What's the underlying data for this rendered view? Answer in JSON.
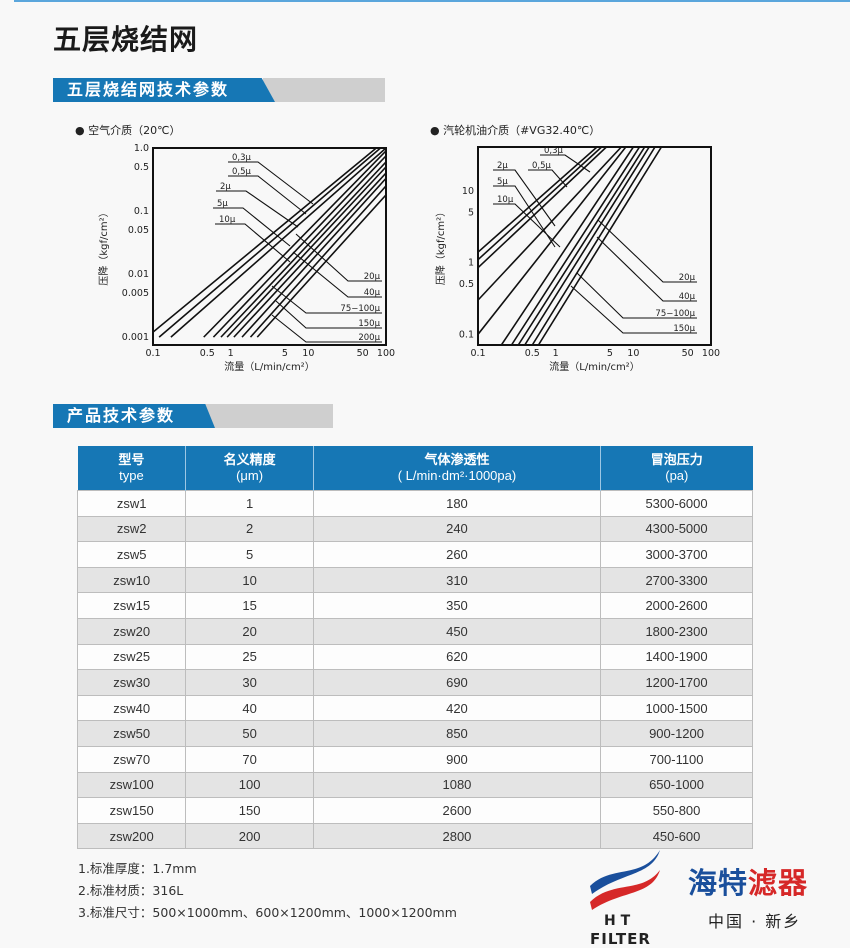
{
  "page_title": "五层烧结网",
  "section1_title": "五层烧结网技术参数",
  "section2_title": "产品技术参数",
  "chart_data": [
    {
      "type": "line",
      "title": "● 空气介质（20℃）",
      "xlabel": "流量（L/min/cm²）",
      "ylabel": "压降（kgf/cm²）",
      "xscale": "log",
      "yscale": "log",
      "xlim": [
        0.1,
        100
      ],
      "ylim": [
        0.00075,
        1.0
      ],
      "xticks": [
        "0.1",
        "0.5",
        "1",
        "5",
        "10",
        "50",
        "100"
      ],
      "xtick_values": [
        0.1,
        0.5,
        1,
        5,
        10,
        50,
        100
      ],
      "yticks": [
        "1.0",
        "0.5",
        "0.1",
        "0.05",
        "0.01",
        "0.005",
        "0.001"
      ],
      "ytick_values": [
        1.0,
        0.5,
        0.1,
        0.05,
        0.01,
        0.005,
        0.001
      ],
      "left_labels": [
        "0,3μ",
        "0,5μ",
        "2μ",
        "5μ",
        "10μ"
      ],
      "right_labels": [
        "20μ",
        "40μ",
        "75−100μ",
        "150μ",
        "200μ"
      ],
      "lines": [
        [
          [
            0.1,
            0.0012
          ],
          [
            75,
            1
          ]
        ],
        [
          [
            0.12,
            0.001
          ],
          [
            85,
            1
          ]
        ],
        [
          [
            0.17,
            0.001
          ],
          [
            100,
            1
          ]
        ],
        [
          [
            0.45,
            0.001
          ],
          [
            100,
            0.9
          ]
        ],
        [
          [
            0.6,
            0.001
          ],
          [
            100,
            0.75
          ]
        ],
        [
          [
            0.75,
            0.001
          ],
          [
            100,
            0.6
          ]
        ],
        [
          [
            0.9,
            0.001
          ],
          [
            100,
            0.5
          ]
        ],
        [
          [
            1.1,
            0.001
          ],
          [
            100,
            0.4
          ]
        ],
        [
          [
            1.4,
            0.001
          ],
          [
            100,
            0.33
          ]
        ],
        [
          [
            1.8,
            0.001
          ],
          [
            100,
            0.25
          ]
        ],
        [
          [
            2.2,
            0.001
          ],
          [
            100,
            0.18
          ]
        ]
      ]
    },
    {
      "type": "line",
      "title": "● 汽轮机油介质（#VG32.40℃）",
      "xlabel": "流量（L/min/cm²）",
      "ylabel": "压降（kgf/cm²）",
      "xscale": "log",
      "yscale": "log",
      "xlim": [
        0.1,
        100
      ],
      "ylim": [
        0.071,
        41
      ],
      "xticks": [
        "0.1",
        "0.5",
        "1",
        "5",
        "10",
        "50",
        "100"
      ],
      "xtick_values": [
        0.1,
        0.5,
        1,
        5,
        10,
        50,
        100
      ],
      "yticks": [
        "10",
        "5",
        "1",
        "0.5",
        "0.1"
      ],
      "ytick_values": [
        10,
        5,
        1,
        0.5,
        0.1
      ],
      "left_labels": [
        "0,3μ",
        "0,5μ",
        "2μ",
        "5μ",
        "10μ"
      ],
      "right_labels": [
        "20μ",
        "40μ",
        "75−100μ",
        "150μ"
      ],
      "lines": [
        [
          [
            0.1,
            1.4
          ],
          [
            3.4,
            41
          ]
        ],
        [
          [
            0.1,
            1.1
          ],
          [
            3.9,
            41
          ]
        ],
        [
          [
            0.1,
            0.85
          ],
          [
            4.5,
            41
          ]
        ],
        [
          [
            0.1,
            0.3
          ],
          [
            7,
            41
          ]
        ],
        [
          [
            0.1,
            0.1
          ],
          [
            8,
            41
          ]
        ],
        [
          [
            0.2,
            0.071
          ],
          [
            10,
            41
          ]
        ],
        [
          [
            0.27,
            0.071
          ],
          [
            12,
            41
          ]
        ],
        [
          [
            0.33,
            0.071
          ],
          [
            14,
            41
          ]
        ],
        [
          [
            0.4,
            0.071
          ],
          [
            16,
            41
          ]
        ],
        [
          [
            0.5,
            0.071
          ],
          [
            19,
            41
          ]
        ],
        [
          [
            0.6,
            0.071
          ],
          [
            23,
            41
          ]
        ]
      ]
    }
  ],
  "table": {
    "headers": [
      {
        "line1": "型号",
        "line2": "type"
      },
      {
        "line1": "名义精度",
        "line2": "(μm)"
      },
      {
        "line1": "气体渗透性",
        "line2": "( L/min·dm²·1000pa)"
      },
      {
        "line1": "冒泡压力",
        "line2": "(pa)"
      }
    ],
    "rows": [
      [
        "zsw1",
        "1",
        "180",
        "5300-6000"
      ],
      [
        "zsw2",
        "2",
        "240",
        "4300-5000"
      ],
      [
        "zsw5",
        "5",
        "260",
        "3000-3700"
      ],
      [
        "zsw10",
        "10",
        "310",
        "2700-3300"
      ],
      [
        "zsw15",
        "15",
        "350",
        "2000-2600"
      ],
      [
        "zsw20",
        "20",
        "450",
        "1800-2300"
      ],
      [
        "zsw25",
        "25",
        "620",
        "1400-1900"
      ],
      [
        "zsw30",
        "30",
        "690",
        "1200-1700"
      ],
      [
        "zsw40",
        "40",
        "420",
        "1000-1500"
      ],
      [
        "zsw50",
        "50",
        "850",
        "900-1200"
      ],
      [
        "zsw70",
        "70",
        "900",
        "700-1100"
      ],
      [
        "zsw100",
        "100",
        "1080",
        "650-1000"
      ],
      [
        "zsw150",
        "150",
        "2600",
        "550-800"
      ],
      [
        "zsw200",
        "200",
        "2800",
        "450-600"
      ]
    ]
  },
  "notes": [
    "1.标准厚度：1.7mm",
    "2.标准材质：316L",
    "3.标准尺寸：500×1000mm、600×1200mm、1000×1200mm"
  ],
  "logo": {
    "letters": "H T",
    "word": "FILTER",
    "brand_part1": "海特",
    "brand_part2": "滤器",
    "city": "中国 · 新乡"
  },
  "colors": {
    "accent": "#1677b5",
    "brand_blue": "#1a4f9c",
    "brand_red": "#d62828"
  }
}
